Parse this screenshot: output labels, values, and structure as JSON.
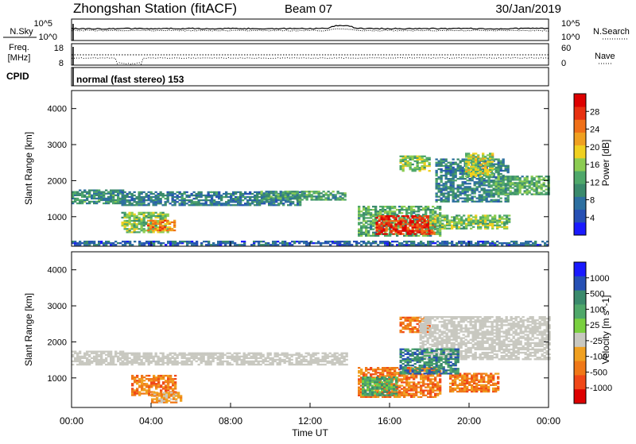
{
  "header": {
    "station": "Zhongshan Station (fitACF)",
    "beam": "Beam 07",
    "date": "30/Jan/2019"
  },
  "summary_panels": {
    "nsky_label": "N.Sky",
    "nsearch_label": "N.Search",
    "nsky_ticks": [
      "10^5",
      "10^0"
    ],
    "nsearch_ticks": [
      "10^5",
      "10^0"
    ],
    "freq_label_1": "Freq.",
    "freq_label_2": "[MHz]",
    "freq_ticks": [
      "18",
      "8"
    ],
    "nave_label": "Nave",
    "nave_ticks": [
      "60",
      "0"
    ],
    "cpid_label": "CPID",
    "cpid_text": "normal (fast stereo) 153"
  },
  "chart_data": [
    {
      "type": "heatmap",
      "name": "power",
      "ylabel": "Slant Range [km]",
      "ylim": [
        180,
        4500
      ],
      "yticks": [
        "1000",
        "2000",
        "3000",
        "4000"
      ],
      "xlim": [
        0,
        24
      ],
      "colorbar": {
        "label": "Power [dB]",
        "ticks": [
          "4",
          "8",
          "12",
          "16",
          "20",
          "24",
          "28"
        ],
        "range": [
          0,
          30
        ],
        "colors": [
          "#1a1aff",
          "#2650b4",
          "#2d6fa0",
          "#3a8a6c",
          "#4fa86a",
          "#8ccc52",
          "#f0d020",
          "#f0a020",
          "#f07018",
          "#e83010",
          "#dd0000"
        ]
      },
      "regions": [
        {
          "t0": 0.0,
          "t1": 2.6,
          "r0": 1350,
          "r1": 1750,
          "level": 10
        },
        {
          "t0": 2.5,
          "t1": 4.8,
          "r0": 550,
          "r1": 1100,
          "level": 14
        },
        {
          "t0": 3.8,
          "t1": 5.2,
          "r0": 600,
          "r1": 900,
          "level": 22
        },
        {
          "t0": 2.5,
          "t1": 7.0,
          "r0": 1300,
          "r1": 1700,
          "level": 8
        },
        {
          "t0": 7.0,
          "t1": 11.5,
          "r0": 1300,
          "r1": 1700,
          "level": 8
        },
        {
          "t0": 9.5,
          "t1": 13.8,
          "r0": 1450,
          "r1": 1700,
          "level": 11
        },
        {
          "t0": 14.4,
          "t1": 18.5,
          "r0": 450,
          "r1": 1300,
          "level": 12
        },
        {
          "t0": 15.3,
          "t1": 18.2,
          "r0": 500,
          "r1": 1000,
          "level": 26
        },
        {
          "t0": 18.0,
          "t1": 22.0,
          "r0": 650,
          "r1": 1050,
          "level": 14
        },
        {
          "t0": 16.5,
          "t1": 18.0,
          "r0": 2250,
          "r1": 2700,
          "level": 14
        },
        {
          "t0": 18.3,
          "t1": 22.0,
          "r0": 1400,
          "r1": 2600,
          "level": 9
        },
        {
          "t0": 19.8,
          "t1": 21.2,
          "r0": 2100,
          "r1": 2750,
          "level": 16
        },
        {
          "t0": 21.3,
          "t1": 24.0,
          "r0": 1600,
          "r1": 2100,
          "level": 12
        },
        {
          "t0": 0.0,
          "t1": 24.0,
          "r0": 200,
          "r1": 320,
          "level": 6
        }
      ]
    },
    {
      "type": "heatmap",
      "name": "velocity",
      "ylabel": "Slant Range [km]",
      "ylim": [
        180,
        4500
      ],
      "yticks": [
        "1000",
        "2000",
        "3000",
        "4000"
      ],
      "xlim": [
        0,
        24
      ],
      "colorbar": {
        "label": "Velocity [m s^-1]",
        "ticks": [
          "1000",
          "500",
          "100",
          "25",
          "-25",
          "-100",
          "-500",
          "-1000"
        ],
        "colors": [
          "#1a1aff",
          "#2650b4",
          "#3a8a6c",
          "#4fa86a",
          "#7ad040",
          "#c8c8c0",
          "#f0a020",
          "#f07818",
          "#f04818",
          "#dd0000"
        ]
      },
      "regions": [
        {
          "t0": 0.0,
          "t1": 2.6,
          "r0": 1350,
          "r1": 1750,
          "class": "ground"
        },
        {
          "t0": 2.5,
          "t1": 13.8,
          "r0": 1350,
          "r1": 1700,
          "class": "ground"
        },
        {
          "t0": 3.0,
          "t1": 5.2,
          "r0": 500,
          "r1": 1050,
          "class": "-100"
        },
        {
          "t0": 4.0,
          "t1": 5.5,
          "r0": 300,
          "r1": 600,
          "class": "-25"
        },
        {
          "t0": 14.4,
          "t1": 18.5,
          "r0": 450,
          "r1": 1300,
          "class": "-100"
        },
        {
          "t0": 14.6,
          "t1": 16.3,
          "r0": 500,
          "r1": 1000,
          "class": "100"
        },
        {
          "t0": 16.5,
          "t1": 18.0,
          "r0": 2250,
          "r1": 2700,
          "class": "-100"
        },
        {
          "t0": 17.5,
          "t1": 24.0,
          "r0": 1500,
          "r1": 2700,
          "class": "ground"
        },
        {
          "t0": 19.0,
          "t1": 21.5,
          "r0": 600,
          "r1": 1100,
          "class": "-100"
        },
        {
          "t0": 16.5,
          "t1": 19.5,
          "r0": 1100,
          "r1": 1800,
          "class": "500"
        }
      ]
    }
  ],
  "time_axis": {
    "ticks": [
      "00:00",
      "04:00",
      "08:00",
      "12:00",
      "16:00",
      "20:00",
      "00:00"
    ],
    "label": "Time UT"
  }
}
